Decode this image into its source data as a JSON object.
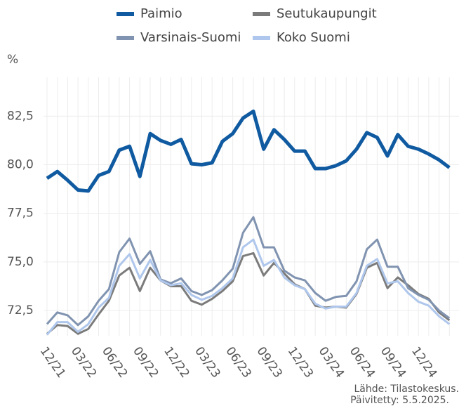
{
  "chart_data": {
    "type": "line",
    "y_label": "%",
    "source": "Lähde: Tilastokeskus.",
    "updated": "Päivitetty: 5.5.2025.",
    "categories": [
      "12/21",
      null,
      null,
      "03/22",
      null,
      null,
      "06/22",
      null,
      null,
      "09/22",
      null,
      null,
      "12/22",
      null,
      null,
      "03/23",
      null,
      null,
      "06/23",
      null,
      null,
      "09/23",
      null,
      null,
      "12/23",
      null,
      null,
      "03/24",
      null,
      null,
      "06/24",
      null,
      null,
      "09/24",
      null,
      null,
      "12/24",
      null,
      null,
      null
    ],
    "ylim": [
      71.2,
      84.5
    ],
    "yticks": [
      {
        "value": 72.5,
        "label": "72,5"
      },
      {
        "value": 75,
        "label": "75,0"
      },
      {
        "value": 77.5,
        "label": "77,5"
      },
      {
        "value": 80,
        "label": "80,0"
      },
      {
        "value": 82.5,
        "label": "82,5"
      }
    ],
    "grid": true,
    "legend": "top",
    "series": [
      {
        "name": "Paimio",
        "color": "#0f5aa0",
        "values": [
          79.3,
          79.65,
          79.2,
          78.7,
          78.65,
          79.45,
          79.65,
          80.75,
          80.95,
          79.4,
          81.6,
          81.25,
          81.05,
          81.3,
          80.05,
          80.0,
          80.1,
          81.2,
          81.6,
          82.4,
          82.75,
          80.8,
          81.8,
          81.3,
          80.7,
          80.7,
          79.8,
          79.8,
          79.95,
          80.2,
          80.8,
          81.65,
          81.4,
          80.45,
          81.55,
          80.95,
          80.8,
          80.55,
          80.25,
          79.85
        ]
      },
      {
        "name": "Seutukaupungit",
        "color": "#7b7b7b",
        "values": [
          71.3,
          71.75,
          71.7,
          71.3,
          71.55,
          72.3,
          73.0,
          74.3,
          74.7,
          73.5,
          74.7,
          74.05,
          73.75,
          73.75,
          73.0,
          72.8,
          73.1,
          73.5,
          74.0,
          75.3,
          75.45,
          74.3,
          74.95,
          74.4,
          73.85,
          73.6,
          72.75,
          72.65,
          72.7,
          72.65,
          73.35,
          74.7,
          74.95,
          73.65,
          74.2,
          73.8,
          73.35,
          73.1,
          72.4,
          72.0
        ]
      },
      {
        "name": "Varsinais-Suomi",
        "color": "#8093b0",
        "values": [
          71.8,
          72.4,
          72.25,
          71.75,
          72.2,
          73.0,
          73.6,
          75.5,
          76.2,
          74.9,
          75.55,
          74.1,
          73.9,
          74.15,
          73.5,
          73.3,
          73.55,
          74.05,
          74.65,
          76.5,
          77.3,
          75.75,
          75.75,
          74.55,
          74.2,
          74.05,
          73.4,
          73.0,
          73.2,
          73.25,
          74.0,
          75.65,
          76.15,
          74.75,
          74.75,
          73.65,
          73.3,
          73.05,
          72.5,
          72.1
        ]
      },
      {
        "name": "Koko Suomi",
        "color": "#afc7ec",
        "values": [
          71.25,
          71.9,
          71.9,
          71.4,
          71.8,
          72.65,
          73.15,
          74.8,
          75.4,
          74.15,
          75.1,
          74.05,
          73.8,
          73.9,
          73.3,
          73.05,
          73.25,
          73.65,
          74.15,
          75.75,
          76.15,
          74.8,
          75.1,
          74.2,
          73.8,
          73.6,
          72.85,
          72.6,
          72.7,
          72.7,
          73.4,
          74.8,
          75.15,
          73.9,
          74.0,
          73.4,
          72.95,
          72.75,
          72.2,
          71.8
        ]
      }
    ]
  }
}
